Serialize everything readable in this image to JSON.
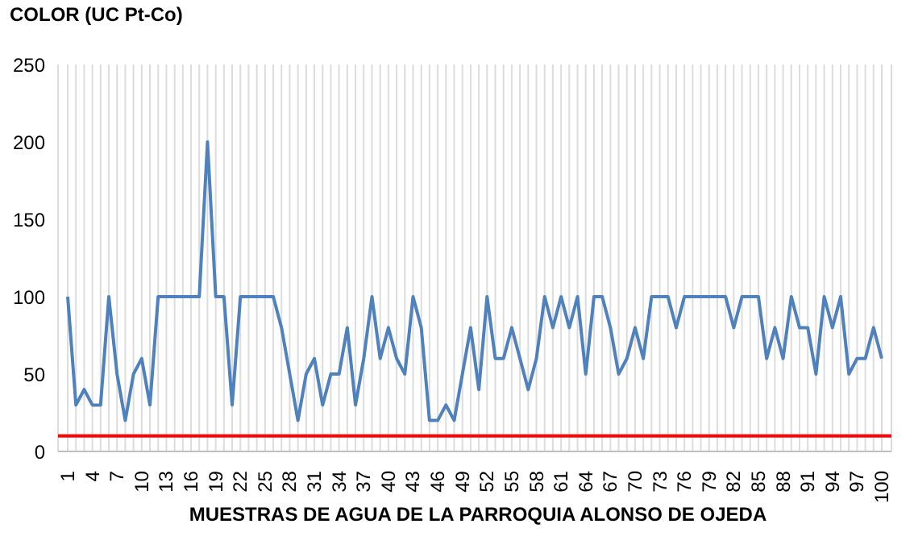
{
  "chart_data": {
    "type": "line",
    "ylabel": "COLOR  (UC  Pt-Co)",
    "xlabel": "MUESTRAS  DE  AGUA  DE  LA  PARROQUIA  ALONSO  DE  OJEDA",
    "categories": [
      "1",
      null,
      null,
      "4",
      null,
      null,
      "7",
      null,
      null,
      "10",
      null,
      null,
      "13",
      null,
      null,
      "16",
      null,
      null,
      "19",
      null,
      null,
      "22",
      null,
      null,
      "25",
      null,
      null,
      "28",
      null,
      null,
      "31",
      null,
      null,
      "34",
      null,
      null,
      "37",
      null,
      null,
      "40",
      null,
      null,
      "43",
      null,
      null,
      "46",
      null,
      null,
      "49",
      null,
      null,
      "52",
      null,
      null,
      "55",
      null,
      null,
      "58",
      null,
      null,
      "61",
      null,
      null,
      "64",
      null,
      null,
      "67",
      null,
      null,
      "70",
      null,
      null,
      "73",
      null,
      null,
      "76",
      null,
      null,
      "79",
      null,
      null,
      "82",
      null,
      null,
      "85",
      null,
      null,
      "88",
      null,
      null,
      "91",
      null,
      null,
      "94",
      null,
      null,
      "97",
      null,
      null,
      "100"
    ],
    "series": [
      {
        "color": "#4f81bd",
        "values": [
          100,
          30,
          40,
          30,
          30,
          100,
          50,
          20,
          50,
          60,
          30,
          100,
          100,
          100,
          100,
          100,
          100,
          200,
          100,
          100,
          30,
          100,
          100,
          100,
          100,
          100,
          80,
          50,
          20,
          50,
          60,
          30,
          50,
          50,
          80,
          30,
          60,
          100,
          60,
          80,
          60,
          50,
          100,
          80,
          20,
          20,
          30,
          20,
          50,
          80,
          40,
          100,
          60,
          60,
          80,
          60,
          40,
          60,
          100,
          80,
          100,
          80,
          100,
          50,
          100,
          100,
          80,
          50,
          60,
          80,
          60,
          100,
          100,
          100,
          80,
          100,
          100,
          100,
          100,
          100,
          100,
          80,
          100,
          100,
          100,
          60,
          80,
          60,
          100,
          80,
          80,
          50,
          100,
          80,
          100,
          50,
          60,
          60,
          80,
          60
        ]
      }
    ],
    "ylim": [
      0,
      250
    ],
    "yticks": [
      0,
      50,
      100,
      150,
      200,
      250
    ],
    "grid": "x",
    "marker": "none",
    "line_style": "solid",
    "ref_lines": [
      {
        "axis": "y",
        "value": 10,
        "color": "#ff0000"
      }
    ]
  }
}
